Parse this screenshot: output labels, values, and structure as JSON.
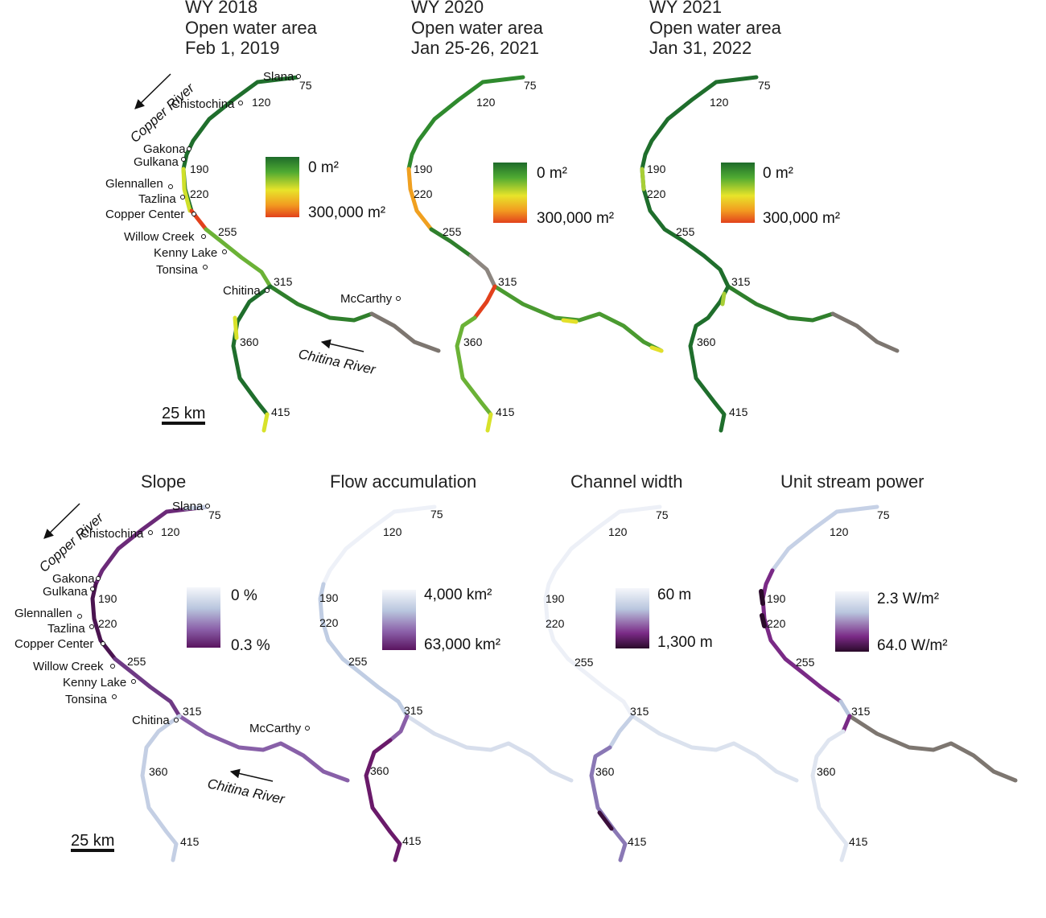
{
  "top_panels": [
    {
      "title_lines": [
        "WY 2018",
        "Open water area",
        "Feb 1, 2019"
      ],
      "legend": {
        "top": "0 m²",
        "bottom": "300,000 m²"
      }
    },
    {
      "title_lines": [
        "WY 2020",
        "Open water area",
        "Jan 25-26, 2021"
      ],
      "legend": {
        "top": "0 m²",
        "bottom": "300,000 m²"
      }
    },
    {
      "title_lines": [
        "WY 2021",
        "Open water area",
        "Jan 31, 2022"
      ],
      "legend": {
        "top": "0 m²",
        "bottom": "300,000 m²"
      }
    }
  ],
  "bottom_panels": [
    {
      "title": "Slope",
      "legend": {
        "top": "0 %",
        "bottom": "0.3 %"
      }
    },
    {
      "title": "Flow accumulation",
      "legend": {
        "top": "4,000 km²",
        "bottom": "63,000 km²"
      }
    },
    {
      "title": "Channel width",
      "legend": {
        "top": "60 m",
        "bottom": "1,300 m"
      }
    },
    {
      "title": "Unit stream power",
      "legend": {
        "top": "2.3 W/m²",
        "bottom": "64.0 W/m²"
      }
    }
  ],
  "river_km_markers": [
    "75",
    "120",
    "190",
    "220",
    "255",
    "315",
    "360",
    "415"
  ],
  "towns": [
    "Slana",
    "Chistochina",
    "Gakona",
    "Gulkana",
    "Glennallen",
    "Tazlina",
    "Copper Center",
    "Willow Creek",
    "Kenny Lake",
    "Tonsina",
    "Chitina",
    "McCarthy"
  ],
  "rivers": {
    "copper": "Copper River",
    "chitina": "Chitina River"
  },
  "scale_bar": "25 km",
  "colors": {
    "open_water_ramp": [
      "#1e6b2a",
      "#4faa32",
      "#d8e22a",
      "#f29a20",
      "#e2411c"
    ],
    "purple_ramp": [
      "#f2f5fa",
      "#b9c6de",
      "#8a6fb0",
      "#6a1f78",
      "#2a0a2a"
    ],
    "no_data": "#7d7670"
  }
}
